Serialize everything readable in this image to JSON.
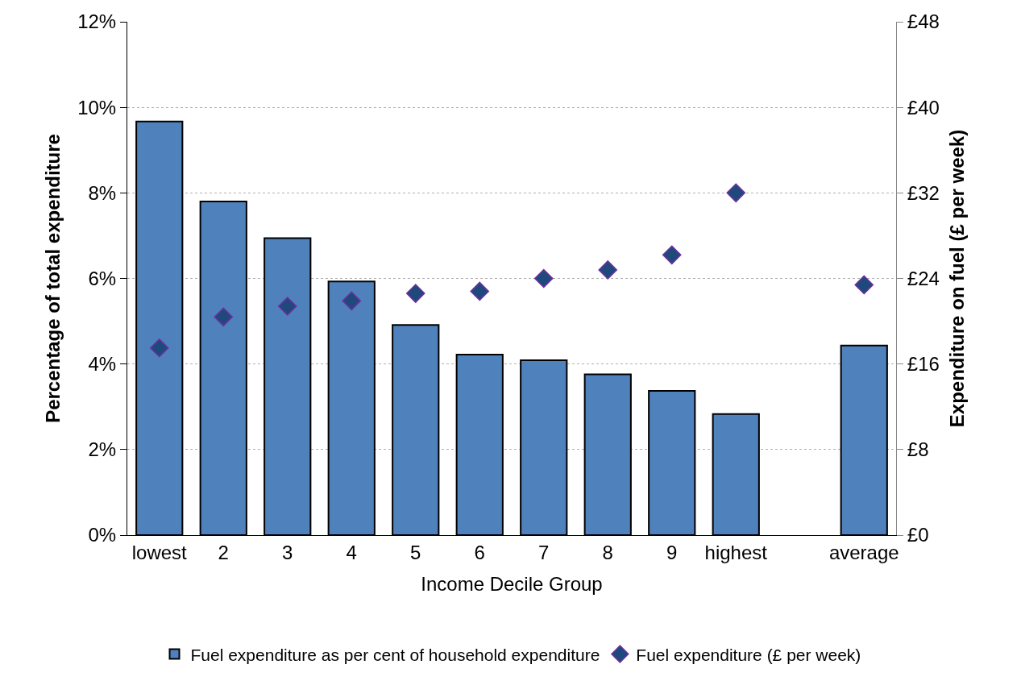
{
  "chart_data": {
    "type": "bar",
    "xlabel": "Income Decile Group",
    "ylabel": "Percentage of total expenditure",
    "y2label": "Expenditure on fuel (£ per week)",
    "categories": [
      "lowest",
      "2",
      "3",
      "4",
      "5",
      "6",
      "7",
      "8",
      "9",
      "highest",
      null,
      "average"
    ],
    "series": [
      {
        "name": "Fuel expenditure as per cent of household expenditure",
        "color": "#4f81bd",
        "values": [
          9.67,
          7.8,
          6.94,
          5.93,
          4.91,
          4.22,
          4.09,
          3.76,
          3.37,
          2.83,
          null,
          4.43
        ]
      },
      {
        "name": "Fuel expenditure (£ per week)",
        "type": "scatter",
        "axis": "y2",
        "marker": "diamond",
        "color": "#1f497d",
        "values": [
          17.5,
          20.4,
          21.4,
          21.9,
          22.6,
          22.8,
          24.0,
          24.8,
          26.2,
          32.0,
          null,
          23.4
        ]
      }
    ],
    "ylim": [
      0,
      12
    ],
    "yticks": [
      {
        "value": 0,
        "label": "0%"
      },
      {
        "value": 2,
        "label": "2%"
      },
      {
        "value": 4,
        "label": "4%"
      },
      {
        "value": 6,
        "label": "6%"
      },
      {
        "value": 8,
        "label": "8%"
      },
      {
        "value": 10,
        "label": "10%"
      },
      {
        "value": 12,
        "label": "12%"
      }
    ],
    "y2lim": [
      0,
      48
    ],
    "y2ticks": [
      {
        "value": 0,
        "label": "£0"
      },
      {
        "value": 8,
        "label": "£8"
      },
      {
        "value": 16,
        "label": "£16"
      },
      {
        "value": 24,
        "label": "£24"
      },
      {
        "value": 32,
        "label": "£32"
      },
      {
        "value": 40,
        "label": "£40"
      },
      {
        "value": 48,
        "label": "£48"
      }
    ],
    "grid": "y",
    "legend": "bottom"
  }
}
